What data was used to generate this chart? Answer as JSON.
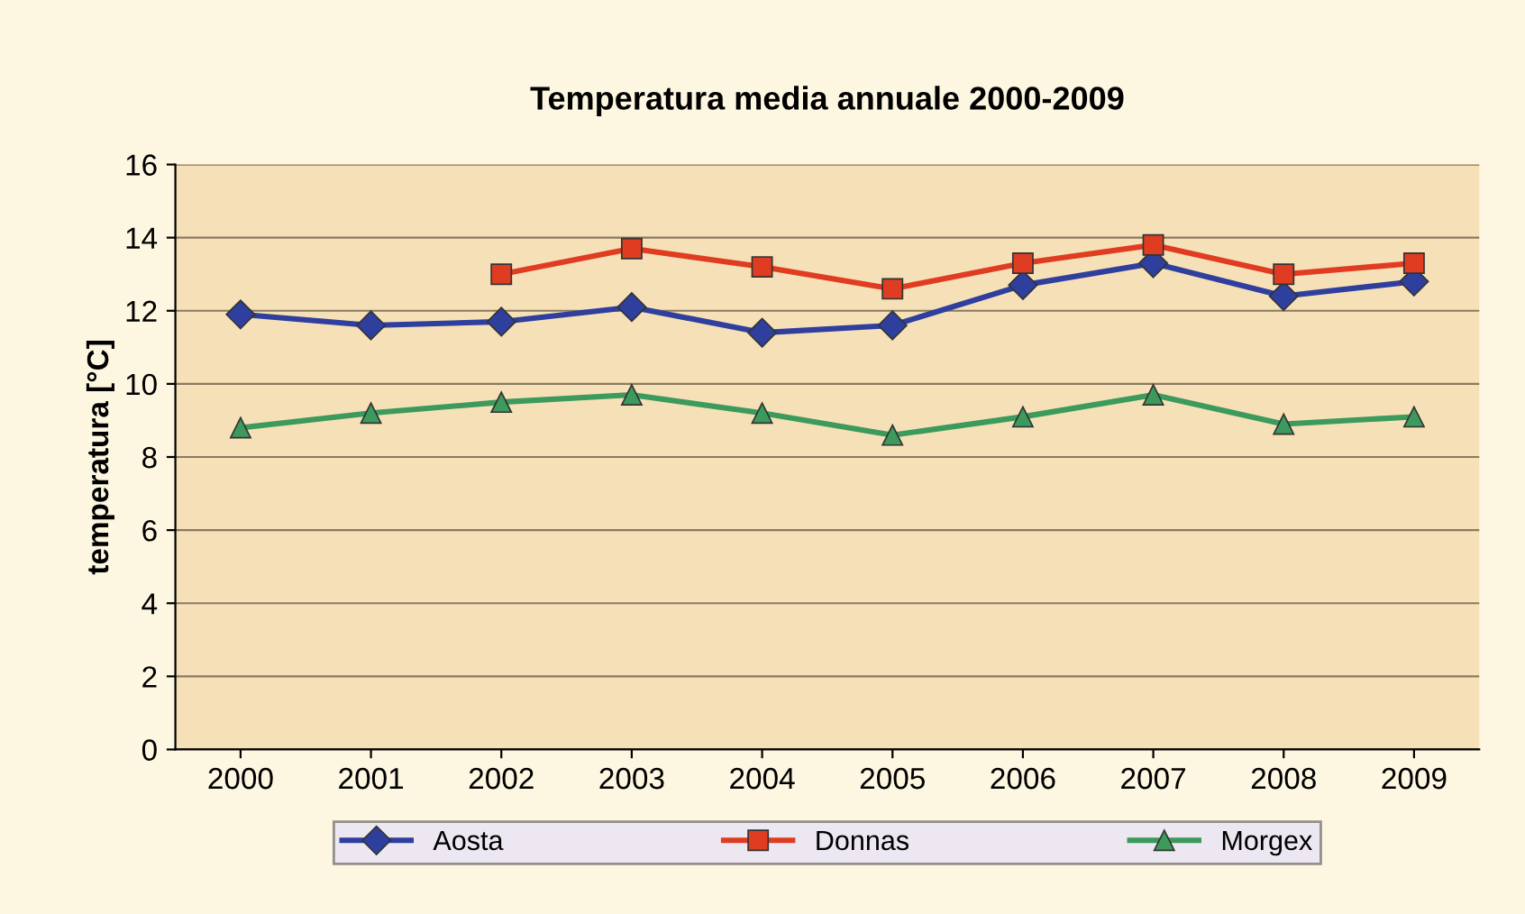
{
  "chart_data": {
    "type": "line",
    "title": "Temperatura media annuale 2000-2009",
    "ylabel": "temperatura [°C]",
    "categories": [
      "2000",
      "2001",
      "2002",
      "2003",
      "2004",
      "2005",
      "2006",
      "2007",
      "2008",
      "2009"
    ],
    "series": [
      {
        "name": "Aosta",
        "color": "#2e3f9e",
        "marker": "diamond",
        "values": [
          11.9,
          11.6,
          11.7,
          12.1,
          11.4,
          11.6,
          12.7,
          13.3,
          12.4,
          12.8
        ]
      },
      {
        "name": "Donnas",
        "color": "#e03c22",
        "marker": "square",
        "values": [
          null,
          null,
          13.0,
          13.7,
          13.2,
          12.6,
          13.3,
          13.8,
          13.0,
          13.3
        ]
      },
      {
        "name": "Morgex",
        "color": "#3c9a5c",
        "marker": "triangle",
        "values": [
          8.8,
          9.2,
          9.5,
          9.7,
          9.2,
          8.6,
          9.1,
          9.7,
          8.9,
          9.1
        ]
      }
    ],
    "ylim": [
      0,
      16
    ],
    "yticks": [
      0,
      2,
      4,
      6,
      8,
      10,
      12,
      14,
      16
    ],
    "grid": "y",
    "legend": "bottom",
    "line_style": "solid"
  }
}
